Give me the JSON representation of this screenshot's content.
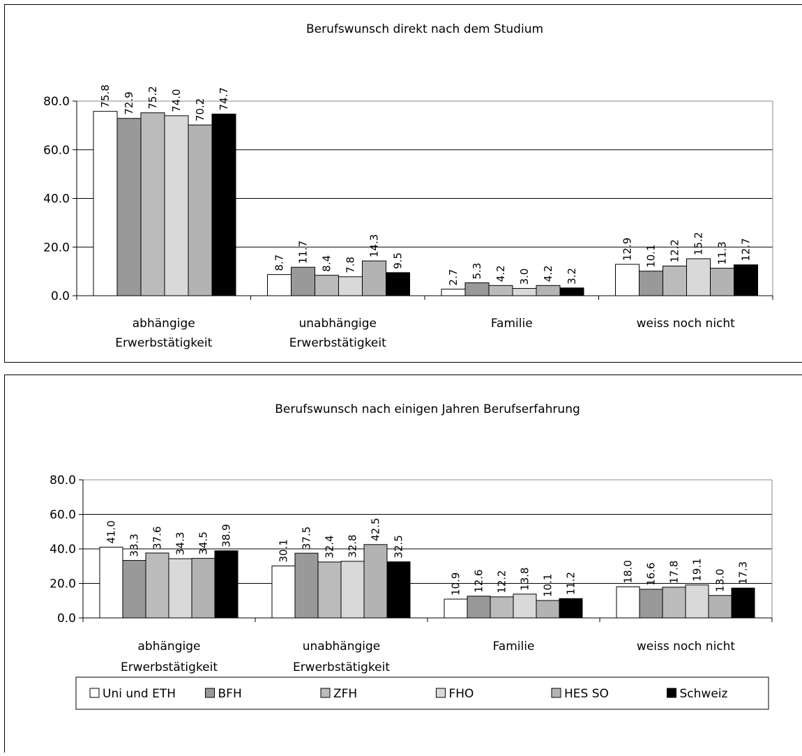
{
  "chart_data": [
    {
      "type": "bar",
      "title": "Berufswunsch direkt nach dem Studium",
      "categories": [
        [
          "abhängige",
          "Erwerbstätigkeit"
        ],
        [
          "unabhängige",
          "Erwerbstätigkeit"
        ],
        [
          "Familie"
        ],
        [
          "weiss noch nicht"
        ]
      ],
      "yticks": [
        "0.0",
        "20.0",
        "40.0",
        "60.0",
        "80.0"
      ],
      "ylim": [
        0,
        80
      ],
      "grid": true,
      "series": [
        {
          "name": "Uni und ETH",
          "color": "#ffffff",
          "values": [
            75.8,
            8.7,
            2.7,
            12.9
          ],
          "labels": [
            "75.8",
            "8.7",
            "2.7",
            "12.9"
          ]
        },
        {
          "name": "BFH",
          "color": "#999999",
          "values": [
            72.9,
            11.7,
            5.3,
            10.1
          ],
          "labels": [
            "72.9",
            "11.7",
            "5.3",
            "10.1"
          ]
        },
        {
          "name": "ZFH",
          "color": "#bbbbbb",
          "values": [
            75.2,
            8.4,
            4.2,
            12.2
          ],
          "labels": [
            "75.2",
            "8.4",
            "4.2",
            "12.2"
          ]
        },
        {
          "name": "FHO",
          "color": "#d9d9d9",
          "values": [
            74.0,
            7.8,
            3.0,
            15.2
          ],
          "labels": [
            "74.0",
            "7.8",
            "3.0",
            "15.2"
          ]
        },
        {
          "name": "HES SO",
          "color": "#b3b3b3",
          "values": [
            70.2,
            14.3,
            4.2,
            11.3
          ],
          "labels": [
            "70.2",
            "14.3",
            "4.2",
            "11.3"
          ]
        },
        {
          "name": "Schweiz",
          "color": "#000000",
          "values": [
            74.7,
            9.5,
            3.2,
            12.7
          ],
          "labels": [
            "74.7",
            "9.5",
            "3.2",
            "12.7"
          ]
        }
      ]
    },
    {
      "type": "bar",
      "title": "Berufswunsch nach einigen Jahren Berufserfahrung",
      "categories": [
        [
          "abhängige",
          "Erwerbstätigkeit"
        ],
        [
          "unabhängige",
          "Erwerbstätigkeit"
        ],
        [
          "Familie"
        ],
        [
          "weiss noch nicht"
        ]
      ],
      "yticks": [
        "0.0",
        "20.0",
        "40.0",
        "60.0",
        "80.0"
      ],
      "ylim": [
        0,
        80
      ],
      "grid": true,
      "legend": "bottom",
      "series": [
        {
          "name": "Uni und ETH",
          "color": "#ffffff",
          "values": [
            41.0,
            30.1,
            10.9,
            18.0
          ],
          "labels": [
            "41.0",
            "30.1",
            "10.9",
            "18.0"
          ]
        },
        {
          "name": "BFH",
          "color": "#999999",
          "values": [
            33.3,
            37.5,
            12.6,
            16.6
          ],
          "labels": [
            "33.3",
            "37.5",
            "12.6",
            "16.6"
          ]
        },
        {
          "name": "ZFH",
          "color": "#bbbbbb",
          "values": [
            37.6,
            32.4,
            12.2,
            17.8
          ],
          "labels": [
            "37.6",
            "32.4",
            "12.2",
            "17.8"
          ]
        },
        {
          "name": "FHO",
          "color": "#d9d9d9",
          "values": [
            34.3,
            32.8,
            13.8,
            19.1
          ],
          "labels": [
            "34.3",
            "32.8",
            "13.8",
            "19.1"
          ]
        },
        {
          "name": "HES SO",
          "color": "#b3b3b3",
          "values": [
            34.5,
            42.5,
            10.1,
            13.0
          ],
          "labels": [
            "34.5",
            "42.5",
            "10.1",
            "13.0"
          ]
        },
        {
          "name": "Schweiz",
          "color": "#000000",
          "values": [
            38.9,
            32.5,
            11.2,
            17.3
          ],
          "labels": [
            "38.9",
            "32.5",
            "11.2",
            "17.3"
          ]
        }
      ]
    }
  ]
}
